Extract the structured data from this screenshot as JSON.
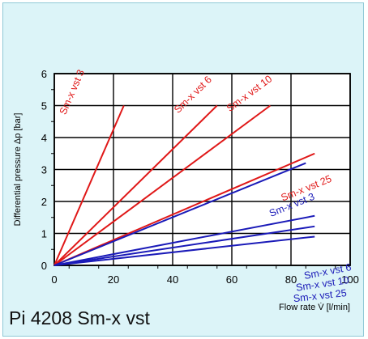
{
  "chart_data": {
    "type": "line",
    "title": "Pi 4208 Sm-x vst",
    "xlabel": "Flow rate V̇ [l/min]",
    "ylabel": "Differential pressure Δp [bar]",
    "xlim": [
      0,
      100
    ],
    "ylim": [
      0,
      6
    ],
    "xticks": [
      "0",
      "20",
      "40",
      "60",
      "80",
      "100"
    ],
    "yticks": [
      "0",
      "1",
      "2",
      "3",
      "4",
      "5",
      "6"
    ],
    "grid": true,
    "colors": {
      "red": "#e01818",
      "blue": "#1a1ab8",
      "background": "#dcf4f8",
      "plot": "#ffffff"
    },
    "series": [
      {
        "name": "Sm-x vst 3",
        "color": "red",
        "x": [
          0,
          23.5
        ],
        "y": [
          0,
          5.0
        ]
      },
      {
        "name": "Sm-x vst 6",
        "color": "red",
        "x": [
          0,
          55
        ],
        "y": [
          0,
          5.0
        ]
      },
      {
        "name": "Sm-x vst 10",
        "color": "red",
        "x": [
          0,
          73
        ],
        "y": [
          0,
          5.0
        ]
      },
      {
        "name": "Sm-x vst 25",
        "color": "red",
        "x": [
          0,
          88
        ],
        "y": [
          0,
          3.5
        ]
      },
      {
        "name": "Sm-x vst 3",
        "color": "blue",
        "x": [
          0,
          85
        ],
        "y": [
          0,
          3.2
        ]
      },
      {
        "name": "Sm-x vst 6",
        "color": "blue",
        "x": [
          0,
          88
        ],
        "y": [
          0,
          1.55
        ]
      },
      {
        "name": "Sm-x vst 10",
        "color": "blue",
        "x": [
          0,
          88
        ],
        "y": [
          0,
          1.22
        ]
      },
      {
        "name": "Sm-x vst 25",
        "color": "blue",
        "x": [
          0,
          88
        ],
        "y": [
          0,
          0.9
        ]
      }
    ]
  }
}
